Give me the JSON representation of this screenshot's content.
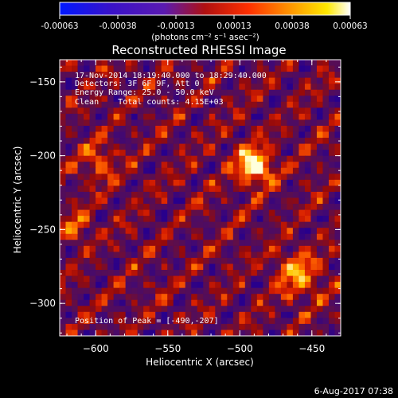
{
  "colorbar": {
    "tick_labels": [
      "-0.00063",
      "-0.00038",
      "-0.00013",
      "0.00013",
      "0.00038",
      "0.00063"
    ],
    "unit_label": "(photons cm⁻² s⁻¹ asec⁻²)",
    "range": [
      -0.00063,
      0.00063
    ]
  },
  "chart_data": {
    "type": "heatmap",
    "title": "Reconstructed RHESSI Image",
    "xlabel": "Heliocentric X (arcsec)",
    "ylabel": "Heliocentric Y (arcsec)",
    "xlim": [
      -625,
      -430
    ],
    "ylim": [
      -322,
      -135
    ],
    "x_ticks": [
      -600,
      -550,
      -500,
      -450
    ],
    "y_ticks": [
      -150,
      -200,
      -250,
      -300
    ],
    "x_tick_labels": [
      "−600",
      "−550",
      "−500",
      "−450"
    ],
    "y_tick_labels": [
      "−150",
      "−200",
      "−250",
      "−300"
    ],
    "peak": [
      -490,
      -207
    ],
    "colormap": "blue-purple-red-orange-yellow-white",
    "annotations": {
      "time_range": "17-Nov-2014 18:19:40.000 to 18:29:40.000",
      "detectors": "Detectors: 3F 6F 9F, Att 0",
      "energy": "Energy Range: 25.0 - 50.0 keV",
      "clean": "Clean    Total counts: 4.15E+03",
      "peak_text": "Position of Peak = [-490,-207]"
    }
  },
  "footer": {
    "timestamp": "6-Aug-2017 07:38"
  }
}
